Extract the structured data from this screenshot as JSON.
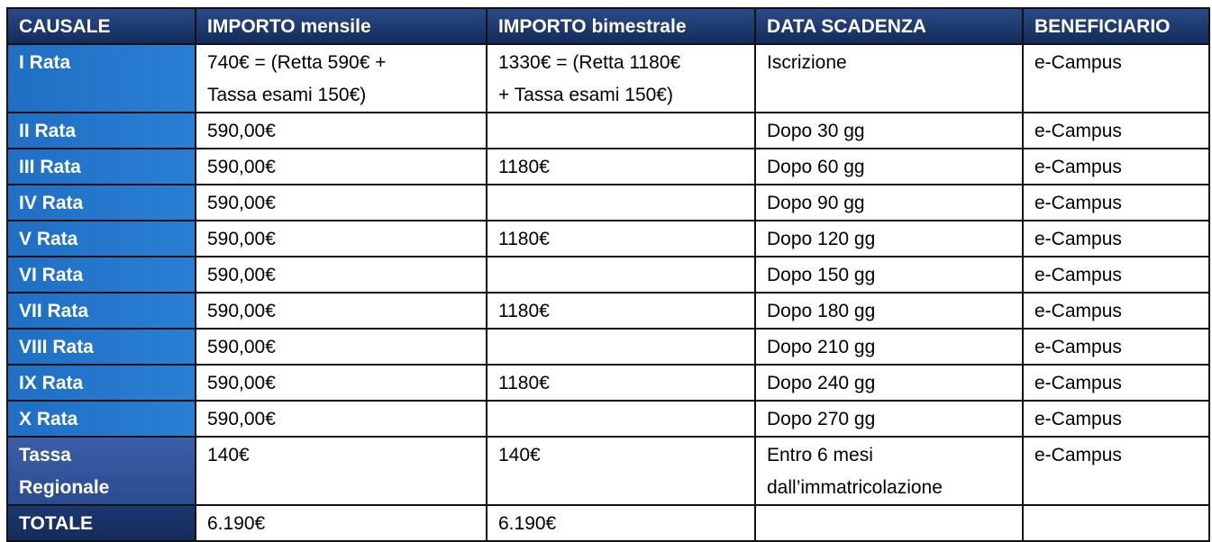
{
  "table": {
    "header": [
      "CAUSALE",
      "IMPORTO mensile",
      "IMPORTO bimestrale",
      "DATA SCADENZA",
      "BENEFICIARIO"
    ],
    "rows": [
      [
        "I Rata",
        [
          "740€ = (Retta 590€ +",
          "Tassa esami 150€)"
        ],
        [
          "1330€ = (Retta 1180€",
          "+ Tassa esami 150€)"
        ],
        "Iscrizione",
        "e-Campus"
      ],
      [
        "II Rata",
        "590,00€",
        null,
        "Dopo 30 gg",
        "e-Campus"
      ],
      [
        "III Rata",
        "590,00€",
        "1180€",
        "Dopo 60 gg",
        "e-Campus"
      ],
      [
        "IV Rata",
        "590,00€",
        null,
        "Dopo 90 gg",
        "e-Campus"
      ],
      [
        "V Rata",
        "590,00€",
        "1180€",
        "Dopo 120 gg",
        "e-Campus"
      ],
      [
        "VI Rata",
        "590,00€",
        null,
        "Dopo 150 gg",
        "e-Campus"
      ],
      [
        "VII Rata",
        "590,00€",
        "1180€",
        "Dopo 180 gg",
        "e-Campus"
      ],
      [
        "VIII Rata",
        "590,00€",
        null,
        "Dopo 210 gg",
        "e-Campus"
      ],
      [
        "IX Rata",
        "590,00€",
        "1180€",
        "Dopo 240 gg",
        "e-Campus"
      ],
      [
        "X Rata",
        "590,00€",
        null,
        "Dopo 270 gg",
        "e-Campus"
      ],
      [
        [
          "Tassa",
          "Regionale"
        ],
        "140€",
        "140€",
        [
          "Entro 6 mesi",
          "dall’immatricolazione"
        ],
        "e-Campus"
      ],
      [
        "TOTALE",
        "6.190€",
        "6.190€",
        null,
        null
      ]
    ]
  }
}
